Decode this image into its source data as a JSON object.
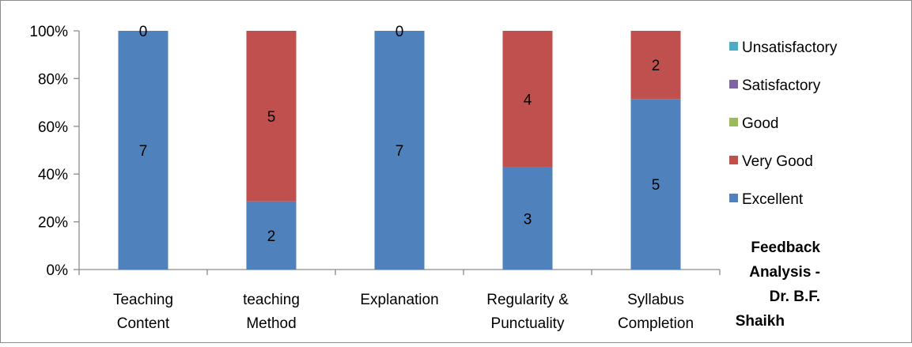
{
  "chart_data": {
    "type": "bar",
    "stacked": true,
    "percent": true,
    "title": [
      "Feedback",
      "Analysis -",
      "Dr. B.F.",
      "Shaikh"
    ],
    "categories": [
      [
        "Teaching",
        "Content"
      ],
      [
        "teaching",
        "Method"
      ],
      [
        "Explanation"
      ],
      [
        "Regularity &",
        "Punctuality"
      ],
      [
        "Syllabus",
        "Completion"
      ]
    ],
    "series": [
      {
        "name": "Excellent",
        "color": "#4F81BD",
        "values": [
          7,
          2,
          7,
          3,
          5
        ]
      },
      {
        "name": "Very Good",
        "color": "#C0504D",
        "values": [
          0,
          5,
          0,
          4,
          2
        ]
      },
      {
        "name": "Good",
        "color": "#9BBB59",
        "values": [
          0,
          0,
          0,
          0,
          0
        ]
      },
      {
        "name": "Satisfactory",
        "color": "#8064A2",
        "values": [
          0,
          0,
          0,
          0,
          0
        ]
      },
      {
        "name": "Unsatisfactory",
        "color": "#4BACC6",
        "values": [
          0,
          0,
          0,
          0,
          0
        ]
      }
    ],
    "yticks": [
      "0%",
      "20%",
      "40%",
      "60%",
      "80%",
      "100%"
    ],
    "ylim": [
      0,
      100
    ],
    "grid": false,
    "legend_position": "right",
    "data_labels": [
      [
        "0"
      ],
      [
        "5",
        "2"
      ],
      [
        "0"
      ],
      [
        "4",
        "3"
      ],
      [
        "2",
        "5"
      ]
    ]
  }
}
